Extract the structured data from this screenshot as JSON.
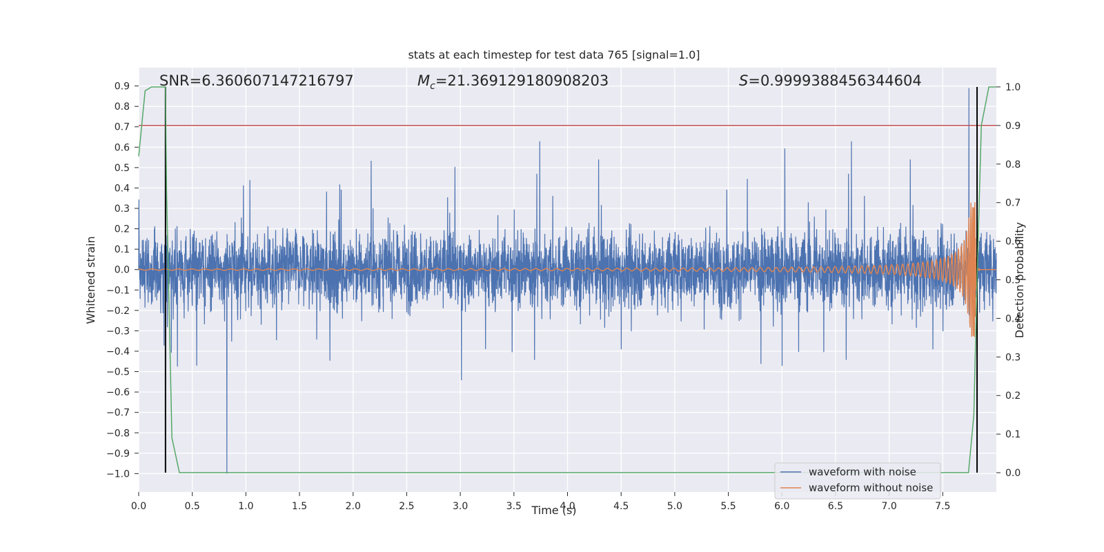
{
  "chart_data": {
    "type": "line",
    "title": "stats at each timestep for test data 765 [signal=1.0]",
    "xlabel": "Time (s)",
    "ylabel": "Whitened strain",
    "y2label": "Detection probability",
    "xlim": [
      0.0,
      8.0
    ],
    "ylim": [
      -1.09,
      0.99
    ],
    "y2lim": [
      -0.05,
      1.05
    ],
    "xticks": [
      "0.0",
      "0.5",
      "1.0",
      "1.5",
      "2.0",
      "2.5",
      "3.0",
      "3.5",
      "4.0",
      "4.5",
      "5.0",
      "5.5",
      "6.0",
      "6.5",
      "7.0",
      "7.5"
    ],
    "yticks": [
      "-1.0",
      "-0.9",
      "-0.8",
      "-0.7",
      "-0.6",
      "-0.5",
      "-0.4",
      "-0.3",
      "-0.2",
      "-0.1",
      "0.0",
      "0.1",
      "0.2",
      "0.3",
      "0.4",
      "0.5",
      "0.6",
      "0.7",
      "0.8",
      "0.9"
    ],
    "y2ticks": [
      "0.0",
      "0.1",
      "0.2",
      "0.3",
      "0.4",
      "0.5",
      "0.6",
      "0.7",
      "0.8",
      "0.9",
      "1.0"
    ],
    "grid": true,
    "legend_position": "lower-right",
    "annotations": {
      "snr": "SNR=6.360607147216797",
      "mc_symbol": "M",
      "mc_sub": "c",
      "mc_value": "=21.369129180908203",
      "s_symbol": "S",
      "s_value": "=0.9999388456344604"
    },
    "threshold": {
      "y2": 0.9,
      "color": "#c44e52"
    },
    "markers": {
      "x": [
        0.25,
        7.82
      ],
      "color": "#000000"
    },
    "series": [
      {
        "name": "waveform with noise",
        "color": "#4c72b0",
        "envelope": {
          "upper_typical": 0.45,
          "lower_typical": -0.42,
          "max": 0.89,
          "min": -1.0
        }
      },
      {
        "name": "waveform without noise",
        "color": "#dd8452",
        "chirp": {
          "start_amplitude": 0.003,
          "merger_time": 7.8,
          "peak_amplitude": 0.33
        }
      },
      {
        "name": "detection probability",
        "axis": "right",
        "color": "#55a868",
        "x": [
          0.0,
          0.06,
          0.12,
          0.25,
          0.26,
          0.31,
          0.38,
          7.74,
          7.79,
          7.82,
          7.86,
          7.93,
          8.0
        ],
        "y": [
          0.82,
          0.99,
          1.0,
          1.0,
          0.73,
          0.09,
          0.0,
          0.0,
          0.15,
          0.5,
          0.9,
          1.0,
          1.0
        ]
      }
    ]
  }
}
